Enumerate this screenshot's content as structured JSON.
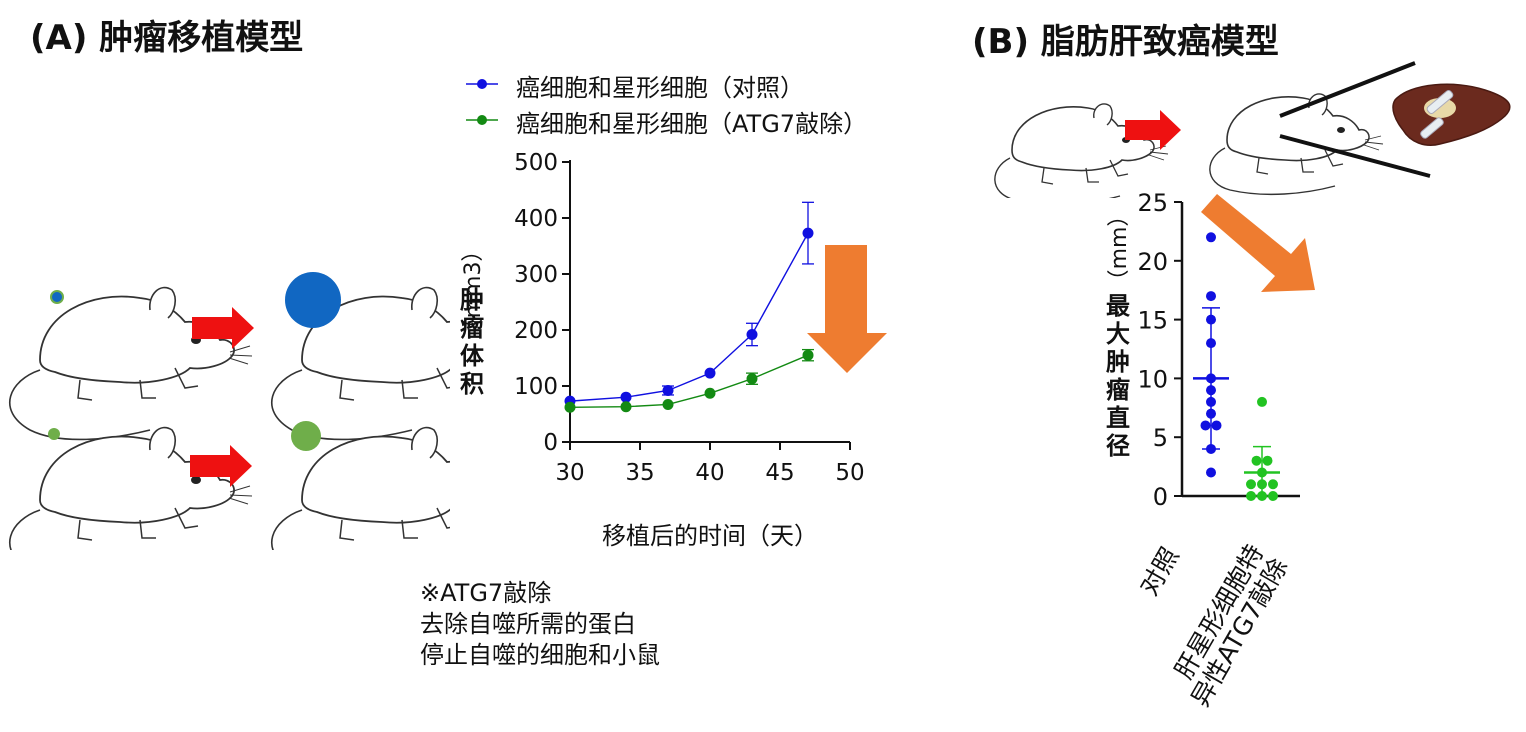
{
  "panel_a": {
    "title": "(A) 肿瘤移植模型",
    "note_lines": [
      "※ATG7敲除",
      "去除自噬所需的蛋白",
      "停止自噬的细胞和小鼠"
    ]
  },
  "panel_b": {
    "title": "(B)  脂肪肝致癌模型"
  },
  "colors": {
    "control": "#1010e0",
    "knockout": "#138a13",
    "scatter_knockout": "#22c322",
    "arrow_orange": "#ee7c30",
    "arrow_red": "#ee1111",
    "tumor_blue": "#1167c2",
    "tumor_green": "#6fae4a"
  },
  "chart_data": [
    {
      "type": "line",
      "xlabel": "移植后的时间（天）",
      "ylabel": "肿瘤体积",
      "ylabel_unit": "（mm3）",
      "xlim": [
        30,
        50
      ],
      "ylim": [
        0,
        500
      ],
      "xticks": [
        30,
        35,
        40,
        45,
        50
      ],
      "yticks": [
        0,
        100,
        200,
        300,
        400,
        500
      ],
      "legend_position": "top",
      "series": [
        {
          "name": "癌细胞和星形细胞（对照）",
          "x": [
            30,
            34,
            37,
            40,
            43,
            47
          ],
          "y": [
            73,
            80,
            92,
            123,
            192,
            373
          ],
          "err": [
            0,
            0,
            8,
            0,
            20,
            55
          ]
        },
        {
          "name": "癌细胞和星形细胞（ATG7敲除）",
          "x": [
            30,
            34,
            37,
            40,
            43,
            47
          ],
          "y": [
            62,
            63,
            67,
            87,
            113,
            155
          ],
          "err": [
            0,
            0,
            0,
            0,
            10,
            10
          ]
        }
      ]
    },
    {
      "type": "scatter",
      "ylabel": "最大肿瘤直径",
      "ylabel_unit": "（mm）",
      "ylim": [
        0,
        25
      ],
      "yticks": [
        0,
        5,
        10,
        15,
        20,
        25
      ],
      "categories": [
        "对照",
        "肝星形细胞特异性ATG7敲除"
      ],
      "category_lines": [
        [
          "对照"
        ],
        [
          "肝星形细胞特",
          "异性ATG7敲除"
        ]
      ],
      "groups": [
        {
          "name": "对照",
          "values": [
            22,
            17,
            15,
            13,
            10,
            9,
            8,
            7,
            6,
            6,
            4,
            2
          ],
          "mean": 10,
          "sd": 6
        },
        {
          "name": "肝星形细胞特异性ATG7敲除",
          "values": [
            8,
            3,
            3,
            2,
            1,
            1,
            1,
            0,
            0,
            0
          ],
          "mean": 2,
          "sd": 2.2
        }
      ]
    }
  ]
}
